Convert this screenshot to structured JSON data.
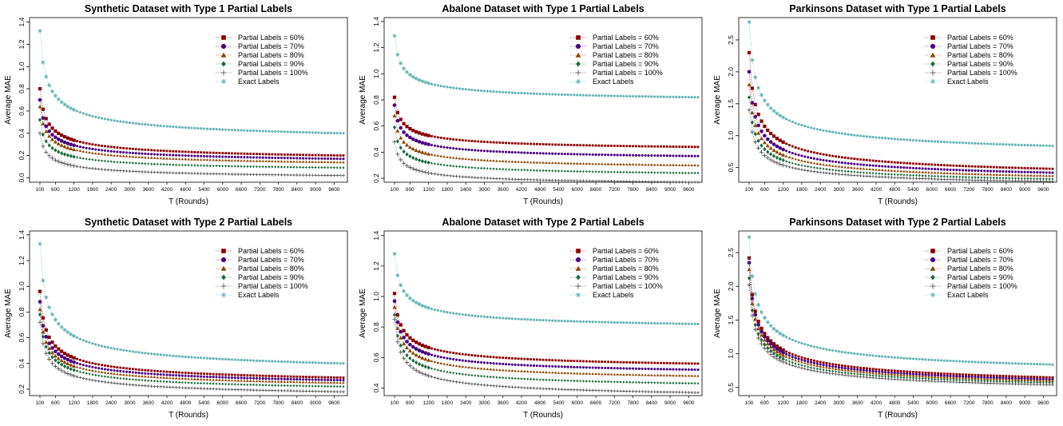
{
  "legend_labels": [
    "Partial Labels = 60%",
    "Partial Labels = 70%",
    "Partial Labels = 80%",
    "Partial Labels = 90%",
    "Partial Labels = 100%",
    "Exact Labels"
  ],
  "series_style": [
    {
      "color": "#8b0000",
      "marker": "square"
    },
    {
      "color": "#4b0082",
      "marker": "circle"
    },
    {
      "color": "#8b4500",
      "marker": "triangle"
    },
    {
      "color": "#1e6b3a",
      "marker": "diamond"
    },
    {
      "color": "#4a4a4a",
      "marker": "plus"
    },
    {
      "color": "#5fb0b0",
      "marker": "star"
    }
  ],
  "chart_data": [
    {
      "type": "scatter",
      "title": "Synthetic Dataset with Type 1 Partial Labels",
      "xlabel": "T (Rounds)",
      "ylabel": "Average MAE",
      "xticks": [
        "100",
        "600",
        "1200",
        "1800",
        "2400",
        "3000",
        "3600",
        "4200",
        "4800",
        "5400",
        "6000",
        "6600",
        "7200",
        "7800",
        "8400",
        "9000",
        "9600"
      ],
      "yticks": [
        0.0,
        0.2,
        0.4,
        0.6,
        0.8,
        1.0,
        1.2,
        1.4
      ],
      "ylim": [
        -0.04,
        1.44
      ],
      "series": [
        {
          "start": 0.8,
          "end": 0.2
        },
        {
          "start": 0.7,
          "end": 0.17
        },
        {
          "start": 0.64,
          "end": 0.14
        },
        {
          "start": 0.52,
          "end": 0.09
        },
        {
          "start": 0.4,
          "end": 0.02
        },
        {
          "start": 1.32,
          "end": 0.4
        }
      ]
    },
    {
      "type": "scatter",
      "title": "Abalone Dataset with Type 1 Partial Labels",
      "xlabel": "T (Rounds)",
      "ylabel": "Average MAE",
      "xticks": [
        "100",
        "600",
        "1200",
        "1800",
        "2400",
        "3000",
        "3600",
        "4200",
        "4800",
        "5400",
        "6000",
        "6600",
        "7200",
        "7800",
        "8400",
        "9000",
        "9600"
      ],
      "yticks": [
        0.2,
        0.4,
        0.6,
        0.8,
        1.0,
        1.2,
        1.4
      ],
      "ylim": [
        0.17,
        1.43
      ],
      "series": [
        {
          "start": 0.82,
          "end": 0.44
        },
        {
          "start": 0.76,
          "end": 0.37
        },
        {
          "start": 0.68,
          "end": 0.3
        },
        {
          "start": 0.59,
          "end": 0.24
        },
        {
          "start": 0.48,
          "end": 0.17
        },
        {
          "start": 1.29,
          "end": 0.82
        }
      ]
    },
    {
      "type": "scatter",
      "title": "Parkinsons Dataset with Type 1 Partial Labels",
      "xlabel": "T (Rounds)",
      "ylabel": "Average MAE",
      "xticks": [
        "100",
        "600",
        "1200",
        "1800",
        "2400",
        "3000",
        "3600",
        "4200",
        "4800",
        "5400",
        "6000",
        "6600",
        "7200",
        "7800",
        "8400",
        "9000",
        "9600"
      ],
      "yticks": [
        0.5,
        1.0,
        1.5,
        2.0,
        2.5
      ],
      "ylim": [
        0.27,
        2.85
      ],
      "series": [
        {
          "start": 2.3,
          "end": 0.48
        },
        {
          "start": 2.0,
          "end": 0.42
        },
        {
          "start": 1.8,
          "end": 0.37
        },
        {
          "start": 1.6,
          "end": 0.32
        },
        {
          "start": 1.4,
          "end": 0.28
        },
        {
          "start": 2.78,
          "end": 0.84
        }
      ]
    },
    {
      "type": "scatter",
      "title": "Synthetic Dataset with Type 2 Partial Labels",
      "xlabel": "T (Rounds)",
      "ylabel": "Average MAE",
      "xticks": [
        "100",
        "600",
        "1200",
        "1800",
        "2400",
        "3000",
        "3600",
        "4200",
        "4800",
        "5400",
        "6000",
        "6600",
        "7200",
        "7800",
        "8400",
        "9000",
        "9600"
      ],
      "yticks": [
        0.2,
        0.4,
        0.6,
        0.8,
        1.0,
        1.2,
        1.4
      ],
      "ylim": [
        0.15,
        1.43
      ],
      "series": [
        {
          "start": 0.96,
          "end": 0.29
        },
        {
          "start": 0.88,
          "end": 0.27
        },
        {
          "start": 0.82,
          "end": 0.25
        },
        {
          "start": 0.78,
          "end": 0.22
        },
        {
          "start": 0.72,
          "end": 0.18
        },
        {
          "start": 1.33,
          "end": 0.4
        }
      ]
    },
    {
      "type": "scatter",
      "title": "Abalone Dataset with Type 2 Partial Labels",
      "xlabel": "T (Rounds)",
      "ylabel": "Average MAE",
      "xticks": [
        "100",
        "600",
        "1200",
        "1800",
        "2400",
        "3000",
        "3600",
        "4200",
        "4800",
        "5400",
        "6000",
        "6600",
        "7200",
        "7800",
        "8400",
        "9000",
        "9600"
      ],
      "yticks": [
        0.4,
        0.6,
        0.8,
        1.0,
        1.2,
        1.4
      ],
      "ylim": [
        0.35,
        1.43
      ],
      "series": [
        {
          "start": 1.02,
          "end": 0.56
        },
        {
          "start": 0.97,
          "end": 0.52
        },
        {
          "start": 0.93,
          "end": 0.48
        },
        {
          "start": 0.88,
          "end": 0.43
        },
        {
          "start": 0.85,
          "end": 0.37
        },
        {
          "start": 1.28,
          "end": 0.82
        }
      ]
    },
    {
      "type": "scatter",
      "title": "Parkinsons Dataset with Type 2 Partial Labels",
      "xlabel": "T (Rounds)",
      "ylabel": "Average MAE",
      "xticks": [
        "100",
        "600",
        "1200",
        "1800",
        "2400",
        "3000",
        "3600",
        "4200",
        "4800",
        "5400",
        "6000",
        "6600",
        "7200",
        "7800",
        "8400",
        "9000",
        "9600"
      ],
      "yticks": [
        0.5,
        1.0,
        1.5,
        2.0,
        2.5
      ],
      "ylim": [
        0.38,
        2.82
      ],
      "series": [
        {
          "start": 2.42,
          "end": 0.65
        },
        {
          "start": 2.35,
          "end": 0.62
        },
        {
          "start": 2.25,
          "end": 0.6
        },
        {
          "start": 2.12,
          "end": 0.57
        },
        {
          "start": 2.02,
          "end": 0.54
        },
        {
          "start": 2.73,
          "end": 0.84
        }
      ]
    }
  ]
}
